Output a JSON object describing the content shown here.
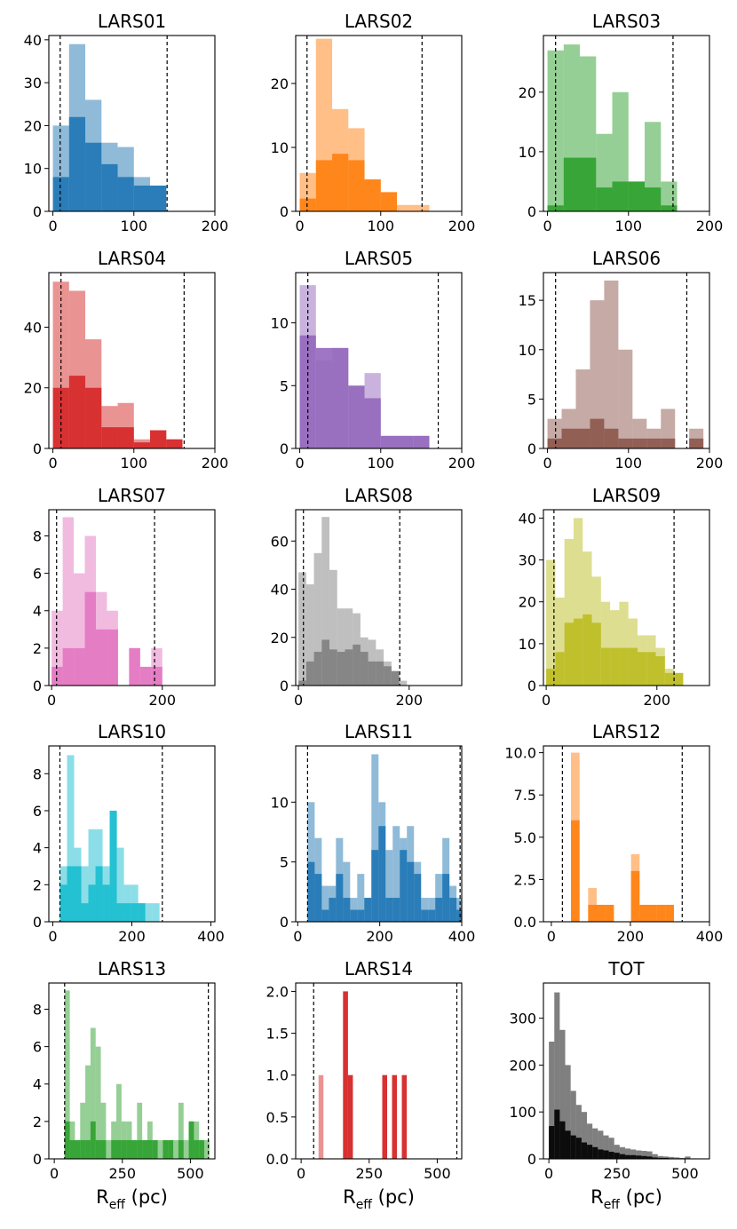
{
  "figure": {
    "xlabel_main": "R",
    "xlabel_sub": "eff",
    "xlabel_unit": " (pc)"
  },
  "chart_data": [
    {
      "type": "bar",
      "title": "LARS01",
      "color": "#1f77b4",
      "xlim": [
        -5,
        200
      ],
      "ylim": [
        0,
        41
      ],
      "xticks": [
        0,
        100,
        200
      ],
      "yticks": [
        0,
        10,
        20,
        30,
        40
      ],
      "vlines": [
        9,
        141
      ],
      "binwidth": 20,
      "bins": [
        0,
        20,
        40,
        60,
        80,
        100,
        120
      ],
      "all": [
        20,
        39,
        26,
        16,
        15,
        8,
        6
      ],
      "sub": [
        8,
        22,
        16,
        11,
        8,
        6,
        6
      ],
      "show_xlabel": false
    },
    {
      "type": "bar",
      "title": "LARS02",
      "color": "#ff7f0e",
      "xlim": [
        -5,
        200
      ],
      "ylim": [
        0,
        27.5
      ],
      "xticks": [
        0,
        100,
        200
      ],
      "yticks": [
        0,
        10,
        20
      ],
      "vlines": [
        9,
        151
      ],
      "binwidth": 20,
      "bins": [
        0,
        20,
        40,
        60,
        80,
        100,
        120,
        140
      ],
      "all": [
        6,
        27,
        16,
        13,
        5,
        3,
        1,
        1
      ],
      "sub": [
        2,
        8,
        9,
        8,
        5,
        3,
        0,
        0
      ],
      "show_xlabel": false
    },
    {
      "type": "bar",
      "title": "LARS03",
      "color": "#2ca02c",
      "xlim": [
        -5,
        200
      ],
      "ylim": [
        0,
        29.5
      ],
      "xticks": [
        0,
        100,
        200
      ],
      "yticks": [
        0,
        10,
        20
      ],
      "vlines": [
        10,
        155
      ],
      "binwidth": 20,
      "bins": [
        0,
        20,
        40,
        60,
        80,
        100,
        120,
        140
      ],
      "all": [
        27,
        28,
        26,
        13,
        20,
        5,
        15,
        5
      ],
      "sub": [
        1,
        9,
        9,
        4,
        5,
        5,
        4,
        1
      ],
      "show_xlabel": false
    },
    {
      "type": "bar",
      "title": "LARS04",
      "color": "#d62728",
      "xlim": [
        -5,
        200
      ],
      "ylim": [
        0,
        58
      ],
      "xticks": [
        0,
        100,
        200
      ],
      "yticks": [
        0,
        20,
        40
      ],
      "vlines": [
        10,
        162
      ],
      "binwidth": 20,
      "bins": [
        0,
        20,
        40,
        60,
        80,
        100,
        120,
        140
      ],
      "all": [
        55,
        52,
        36,
        14,
        15,
        3,
        6,
        3
      ],
      "sub": [
        20,
        24,
        20,
        7,
        7,
        2,
        6,
        3
      ],
      "show_xlabel": false
    },
    {
      "type": "bar",
      "title": "LARS05",
      "color": "#9467bd",
      "xlim": [
        -5,
        200
      ],
      "ylim": [
        0,
        14
      ],
      "xticks": [
        0,
        100,
        200
      ],
      "yticks": [
        0,
        5,
        10
      ],
      "vlines": [
        10,
        171
      ],
      "binwidth": 20,
      "bins": [
        0,
        20,
        40,
        60,
        80,
        100,
        120,
        140
      ],
      "all": [
        13,
        7,
        8,
        5,
        6,
        1,
        1,
        1
      ],
      "sub": [
        9,
        8,
        8,
        5,
        4,
        1,
        1,
        1
      ],
      "show_xlabel": false
    },
    {
      "type": "bar",
      "title": "LARS06",
      "color": "#8c564b",
      "xlim": [
        -5,
        200
      ],
      "ylim": [
        0,
        17.8
      ],
      "xticks": [
        0,
        100,
        200
      ],
      "yticks": [
        0,
        5,
        10,
        15
      ],
      "vlines": [
        10,
        172
      ],
      "binwidth": 17.5,
      "bins": [
        0,
        17.5,
        35,
        52.5,
        70,
        87.5,
        105,
        122.5,
        140,
        157.5,
        175
      ],
      "all": [
        3,
        4,
        8,
        15,
        17,
        10,
        3,
        2,
        4,
        0,
        2
      ],
      "sub": [
        1,
        2,
        2,
        3,
        2,
        1,
        1,
        1,
        1,
        0,
        1
      ],
      "show_xlabel": false
    },
    {
      "type": "bar",
      "title": "LARS07",
      "color": "#e377c2",
      "xlim": [
        -5,
        295
      ],
      "ylim": [
        0,
        9.4
      ],
      "xticks": [
        0,
        200
      ],
      "yticks": [
        0,
        2,
        4,
        6,
        8
      ],
      "vlines": [
        9,
        186
      ],
      "binwidth": 20,
      "bins": [
        0,
        20,
        40,
        60,
        80,
        100,
        120,
        140,
        160,
        180
      ],
      "all": [
        4,
        9,
        6,
        8,
        5,
        4,
        0,
        2,
        1,
        2
      ],
      "sub": [
        1,
        2,
        2,
        5,
        3,
        3,
        0,
        2,
        1,
        1
      ],
      "show_xlabel": false
    },
    {
      "type": "bar",
      "title": "LARS08",
      "color": "#7f7f7f",
      "xlim": [
        -5,
        295
      ],
      "ylim": [
        0,
        73
      ],
      "xticks": [
        0,
        200
      ],
      "yticks": [
        0,
        20,
        40,
        60
      ],
      "vlines": [
        9,
        183
      ],
      "binwidth": 14,
      "bins": [
        0,
        14,
        28,
        42,
        56,
        70,
        84,
        98,
        112,
        126,
        140,
        154,
        168,
        182
      ],
      "all": [
        47,
        42,
        55,
        70,
        48,
        32,
        32,
        30,
        20,
        19,
        15,
        10,
        6,
        2
      ],
      "sub": [
        2,
        10,
        14,
        19,
        15,
        14,
        15,
        17,
        14,
        10,
        10,
        8,
        6,
        0
      ],
      "show_xlabel": false
    },
    {
      "type": "bar",
      "title": "LARS09",
      "color": "#bcbd22",
      "xlim": [
        -5,
        295
      ],
      "ylim": [
        0,
        42
      ],
      "xticks": [
        0,
        200
      ],
      "yticks": [
        0,
        10,
        20,
        30,
        40
      ],
      "vlines": [
        14,
        231
      ],
      "binwidth": 16.5,
      "bins": [
        0,
        16.5,
        33,
        49.5,
        66,
        82.5,
        99,
        115.5,
        132,
        148.5,
        165,
        181.5,
        198,
        214.5,
        231
      ],
      "all": [
        30,
        21,
        35,
        40,
        32,
        26,
        20,
        18,
        20,
        16,
        12,
        12,
        9,
        4,
        3
      ],
      "sub": [
        4,
        8,
        15,
        16,
        17,
        15,
        9,
        9,
        9,
        9,
        8,
        8,
        7,
        3,
        3
      ],
      "show_xlabel": false
    },
    {
      "type": "bar",
      "title": "LARS10",
      "color": "#17becf",
      "xlim": [
        -10,
        410
      ],
      "ylim": [
        0,
        9.5
      ],
      "xticks": [
        0,
        200,
        400
      ],
      "yticks": [
        0,
        2,
        4,
        6,
        8
      ],
      "vlines": [
        18,
        277
      ],
      "binwidth": 18,
      "bins": [
        18,
        36,
        54,
        72,
        90,
        108,
        126,
        144,
        162,
        180,
        198,
        216,
        234,
        252
      ],
      "all": [
        3,
        9,
        4,
        3,
        5,
        5,
        3,
        6,
        4,
        2,
        2,
        1,
        1,
        1
      ],
      "sub": [
        2,
        3,
        3,
        1,
        2,
        3,
        2,
        6,
        1,
        1,
        1,
        1,
        0,
        0
      ],
      "show_xlabel": false
    },
    {
      "type": "bar",
      "title": "LARS11",
      "color": "#1f77b4",
      "xlim": [
        -5,
        400
      ],
      "ylim": [
        0,
        14.7
      ],
      "xticks": [
        0,
        200,
        400
      ],
      "yticks": [
        0,
        5,
        10
      ],
      "vlines": [
        24,
        396
      ],
      "binwidth": 17.3,
      "bins": [
        24,
        41.3,
        58.6,
        75.9,
        93.2,
        110.5,
        127.8,
        145.1,
        162.4,
        179.7,
        197,
        214.3,
        231.6,
        248.9,
        266.2,
        283.5,
        300.8,
        318.1,
        335.4,
        352.7,
        370,
        387.3
      ],
      "all": [
        10,
        7,
        3,
        3,
        7,
        5,
        2,
        4,
        2,
        14,
        10,
        6,
        8,
        7,
        8,
        5,
        2,
        2,
        4,
        7,
        3,
        2
      ],
      "sub": [
        5,
        4,
        1,
        2,
        4,
        2,
        1,
        1,
        2,
        6,
        8,
        2,
        2,
        6,
        5,
        4,
        1,
        1,
        2,
        4,
        2,
        1
      ],
      "show_xlabel": false
    },
    {
      "type": "bar",
      "title": "LARS12",
      "color": "#ff7f0e",
      "xlim": [
        -20,
        400
      ],
      "ylim": [
        0,
        10.4
      ],
      "xticks": [
        0,
        200,
        400
      ],
      "yticks": [
        0,
        2.5,
        5.0,
        7.5,
        10.0
      ],
      "ytick_labels": [
        "0.0",
        "2.5",
        "5.0",
        "7.5",
        "10.0"
      ],
      "vlines": [
        28,
        331
      ],
      "binwidth": 21.7,
      "bins": [
        28,
        49.7,
        71.4,
        93.1,
        114.8,
        136.5,
        158.2,
        179.9,
        201.6,
        223.3,
        245,
        266.7,
        288.4
      ],
      "all": [
        0,
        10,
        0,
        2,
        1,
        1,
        0,
        0,
        4,
        1,
        1,
        1,
        1
      ],
      "sub": [
        0,
        6,
        0,
        1,
        1,
        1,
        0,
        0,
        3,
        1,
        1,
        1,
        1
      ],
      "show_xlabel": false
    },
    {
      "type": "bar",
      "title": "LARS13",
      "color": "#2ca02c",
      "xlim": [
        -20,
        590
      ],
      "ylim": [
        0,
        9.4
      ],
      "xticks": [
        0,
        250,
        500
      ],
      "yticks": [
        0,
        2,
        4,
        6,
        8
      ],
      "vlines": [
        38,
        566
      ],
      "binwidth": 19,
      "bins": [
        38,
        57,
        76,
        95,
        114,
        133,
        152,
        171,
        190,
        209,
        228,
        247,
        266,
        285,
        304,
        323,
        342,
        361,
        380,
        399,
        418,
        437,
        456,
        475,
        494,
        513,
        532,
        551
      ],
      "all": [
        9,
        2,
        1,
        3,
        5,
        7,
        6,
        3,
        1,
        2,
        4,
        2,
        2,
        1,
        3,
        1,
        2,
        1,
        1,
        1,
        1,
        1,
        3,
        1,
        2,
        2,
        1,
        1
      ],
      "sub": [
        2,
        1,
        1,
        1,
        1,
        2,
        1,
        1,
        0,
        1,
        1,
        1,
        1,
        1,
        1,
        1,
        1,
        1,
        0,
        1,
        1,
        0,
        1,
        0,
        2,
        1,
        1,
        0
      ],
      "show_xlabel": true
    },
    {
      "type": "bar",
      "title": "LARS14",
      "color": "#d62728",
      "xlim": [
        -20,
        590
      ],
      "ylim": [
        0,
        2.1
      ],
      "xticks": [
        0,
        250,
        500
      ],
      "yticks": [
        0,
        0.5,
        1.0,
        1.5,
        2.0
      ],
      "ytick_labels": [
        "0.0",
        "0.5",
        "1.0",
        "1.5",
        "2.0"
      ],
      "vlines": [
        46,
        572
      ],
      "binwidth": 18,
      "bins": [
        46,
        64,
        82,
        100,
        118,
        136,
        154,
        172,
        190,
        208,
        226,
        244,
        262,
        280,
        298,
        316,
        334,
        352,
        370,
        388
      ],
      "all": [
        0,
        1,
        0,
        0,
        0,
        0,
        2,
        1,
        0,
        0,
        0,
        0,
        0,
        0,
        1,
        0,
        1,
        0,
        1,
        0
      ],
      "sub": [
        0,
        0,
        0,
        0,
        0,
        0,
        2,
        1,
        0,
        0,
        0,
        0,
        0,
        0,
        1,
        0,
        1,
        0,
        1,
        0
      ],
      "show_xlabel": true
    },
    {
      "type": "bar",
      "title": "TOT",
      "color": "#000000",
      "xlim": [
        -20,
        590
      ],
      "ylim": [
        0,
        375
      ],
      "xticks": [
        0,
        250,
        500
      ],
      "yticks": [
        0,
        100,
        200,
        300
      ],
      "vlines": [],
      "binwidth": 20,
      "bins": [
        0,
        20,
        40,
        60,
        80,
        100,
        120,
        140,
        160,
        180,
        200,
        220,
        240,
        260,
        280,
        300,
        320,
        340,
        360,
        380,
        400,
        420,
        440,
        460,
        480,
        500,
        520,
        540
      ],
      "all": [
        250,
        355,
        275,
        200,
        145,
        115,
        100,
        75,
        65,
        60,
        50,
        45,
        30,
        25,
        22,
        20,
        18,
        17,
        16,
        10,
        6,
        5,
        4,
        3,
        2,
        5,
        1,
        1
      ],
      "sub": [
        70,
        105,
        80,
        60,
        50,
        45,
        35,
        30,
        25,
        20,
        18,
        15,
        13,
        10,
        8,
        8,
        7,
        6,
        5,
        3,
        2,
        2,
        1,
        1,
        1,
        1,
        0,
        0
      ],
      "show_xlabel": true
    }
  ]
}
